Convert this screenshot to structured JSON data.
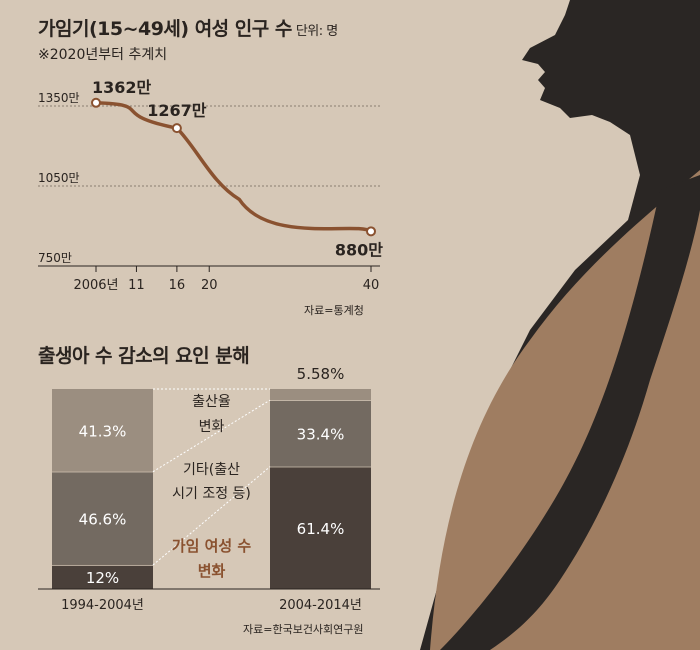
{
  "line_chart": {
    "title": "가임기(15~49세) 여성 인구 수",
    "unit": "단위: 명",
    "subtitle": "※2020년부터 추계치",
    "source": "자료=통계청"
  },
  "bar_chart": {
    "title": "출생아 수 감소의 요인 분해",
    "source": "자료=한국보건사회연구원"
  },
  "colors": {
    "background": "#d6c8b7",
    "line": "#8a5230",
    "bar_top": "#9b8e80",
    "bar_mid": "#736a61",
    "bar_bottom": "#4a403a",
    "accent_text": "#8a5230",
    "silhouette_dark": "#2a2624",
    "silhouette_belly": "#9f7d61"
  },
  "chart_data": [
    {
      "type": "line",
      "x": [
        "2006",
        "2011",
        "2016",
        "2020",
        "2040"
      ],
      "xticks": [
        "2006년",
        "11",
        "16",
        "20",
        "40"
      ],
      "yticks": [
        "1350만",
        "1050만",
        "750만"
      ],
      "ylim": [
        750,
        1350
      ],
      "series": [
        {
          "values": [
            1362,
            1340,
            1267,
            1150,
            880
          ]
        }
      ],
      "labels": [
        {
          "index": 0,
          "text": "1362만"
        },
        {
          "index": 2,
          "text": "1267만"
        },
        {
          "index": 4,
          "text": "880만"
        }
      ]
    },
    {
      "type": "bar",
      "stacked": true,
      "categories": [
        "1994-2004년",
        "2004-2014년"
      ],
      "series": [
        {
          "name": "가임 여성 수 변화",
          "values": [
            12,
            61.4
          ],
          "labels": [
            "12%",
            "61.4%"
          ]
        },
        {
          "name": "기타(출산 시기 조정 등)",
          "values": [
            46.6,
            33.4
          ],
          "labels": [
            "46.6%",
            "33.4%"
          ]
        },
        {
          "name": "출산율 변화",
          "values": [
            41.3,
            5.58
          ],
          "labels": [
            "41.3%",
            "5.58%"
          ]
        }
      ],
      "legend_labels": [
        [
          "출산율",
          "변화"
        ],
        [
          "기타(출산",
          "시기 조정 등)"
        ],
        [
          "가임 여성 수",
          "변화"
        ]
      ]
    }
  ]
}
